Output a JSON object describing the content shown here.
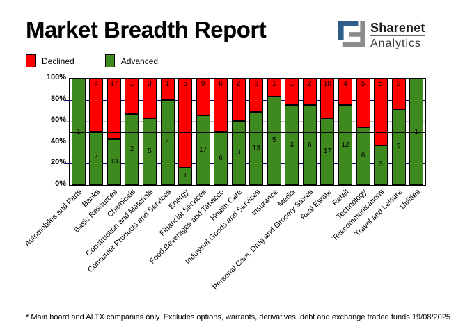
{
  "title": "Market Breadth Report",
  "logo": {
    "line1": "Sharenet",
    "line2": "Analytics",
    "blue": "#2d5f8a",
    "gray": "#8c8c8c"
  },
  "legend": [
    {
      "label": "Declined",
      "color": "#FF0000"
    },
    {
      "label": "Advanced",
      "color": "#3E8A1E"
    }
  ],
  "chart_data": {
    "type": "bar",
    "stacked_percent": true,
    "title": "Market Breadth Report",
    "categories": [
      "Automobiles and Parts",
      "Banks",
      "Basic Resources",
      "Chemicals",
      "Construction and Materials",
      "Consumer Products and Services",
      "Energy",
      "Financial Services",
      "Food,Beverages and Tabacco",
      "Health Care",
      "Industrial Goods and Services",
      "Insurance",
      "Media",
      "Personal Care, Drug and Grocery Stores",
      "Real Estate",
      "Retail",
      "Technology",
      "Telecommunications",
      "Travel and Leisure",
      "Utilities"
    ],
    "series": [
      {
        "name": "Declined",
        "color": "#FF0000",
        "values": [
          0,
          4,
          17,
          1,
          3,
          1,
          5,
          9,
          6,
          2,
          6,
          1,
          1,
          2,
          10,
          4,
          5,
          5,
          2,
          0
        ]
      },
      {
        "name": "Advanced",
        "color": "#3E8A1E",
        "values": [
          1,
          4,
          13,
          2,
          5,
          4,
          1,
          17,
          6,
          3,
          13,
          5,
          3,
          6,
          17,
          12,
          6,
          3,
          5,
          1
        ]
      }
    ],
    "y_ticks": [
      "0%",
      "20%",
      "40%",
      "60%",
      "80%",
      "100%"
    ],
    "ylim": [
      0,
      100
    ],
    "reference_line_pct": 50,
    "reference_line_color": "#000000",
    "gridlines": [
      {
        "pct": 20,
        "color": "#000080"
      },
      {
        "pct": 40,
        "color": "#C0C0C0"
      },
      {
        "pct": 60,
        "color": "#C0C0C0"
      },
      {
        "pct": 80,
        "color": "#000080"
      }
    ],
    "legend_position": "top-left"
  },
  "footer": {
    "note": "* Main board and ALTX companies only. Excludes options, warrants, derivatives, debt and exchange traded funds",
    "date": "19/08/2025"
  }
}
